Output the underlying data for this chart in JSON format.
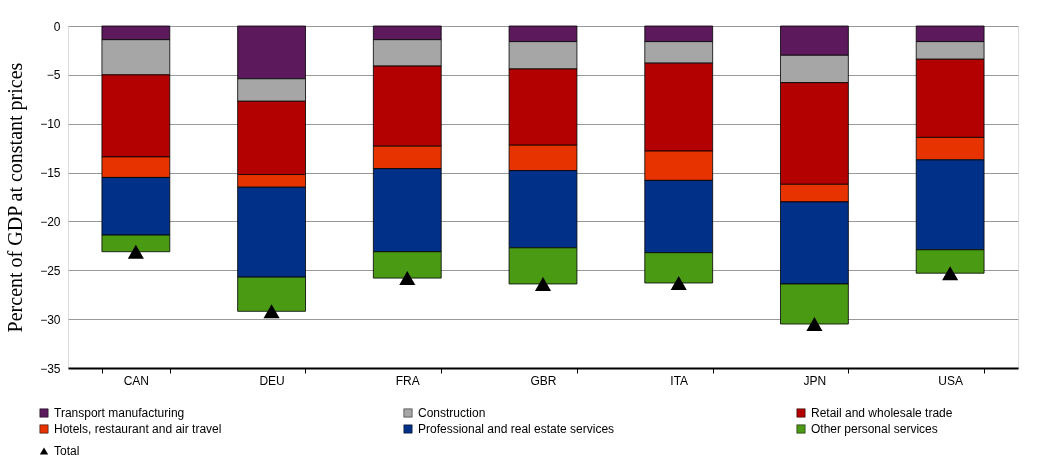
{
  "chart_data": {
    "type": "bar",
    "stacked": true,
    "ylabel": "Percent of GDP at constant prices",
    "categories": [
      "CAN",
      "DEU",
      "FRA",
      "GBR",
      "ITA",
      "JPN",
      "USA"
    ],
    "series": [
      {
        "name": "Transport manufacturing",
        "color": "#5c1a5c",
        "values": [
          -1.4,
          -5.4,
          -1.4,
          -1.6,
          -1.6,
          -3.0,
          -1.6
        ]
      },
      {
        "name": "Construction",
        "color": "#a6a6a6",
        "values": [
          -3.6,
          -2.3,
          -2.7,
          -2.8,
          -2.2,
          -2.8,
          -1.8
        ]
      },
      {
        "name": "Retail and wholesale trade",
        "color": "#b30000",
        "values": [
          -8.4,
          -7.5,
          -8.2,
          -7.8,
          -9.0,
          -10.4,
          -8.0
        ]
      },
      {
        "name": "Hotels, restaurant and air travel",
        "color": "#e63300",
        "values": [
          -2.1,
          -1.3,
          -2.3,
          -2.6,
          -3.0,
          -1.8,
          -2.3
        ]
      },
      {
        "name": "Professional and real estate services",
        "color": "#003087",
        "values": [
          -5.9,
          -9.2,
          -8.5,
          -7.9,
          -7.4,
          -8.4,
          -9.2
        ]
      },
      {
        "name": "Other personal services",
        "color": "#4a9a14",
        "values": [
          -1.7,
          -3.5,
          -2.7,
          -3.7,
          -3.1,
          -4.1,
          -2.4
        ]
      },
      {
        "name": "Total",
        "type": "scatter",
        "marker": "triangle",
        "color": "#000000",
        "values": [
          -23.1,
          -29.2,
          -25.8,
          -26.4,
          -26.3,
          -30.5,
          -25.3
        ]
      }
    ],
    "ylim": [
      -35,
      0
    ],
    "yticks": [
      -35,
      -30,
      -25,
      -20,
      -15,
      -10,
      -5,
      0
    ],
    "grid": "y",
    "legend": "bottom"
  }
}
